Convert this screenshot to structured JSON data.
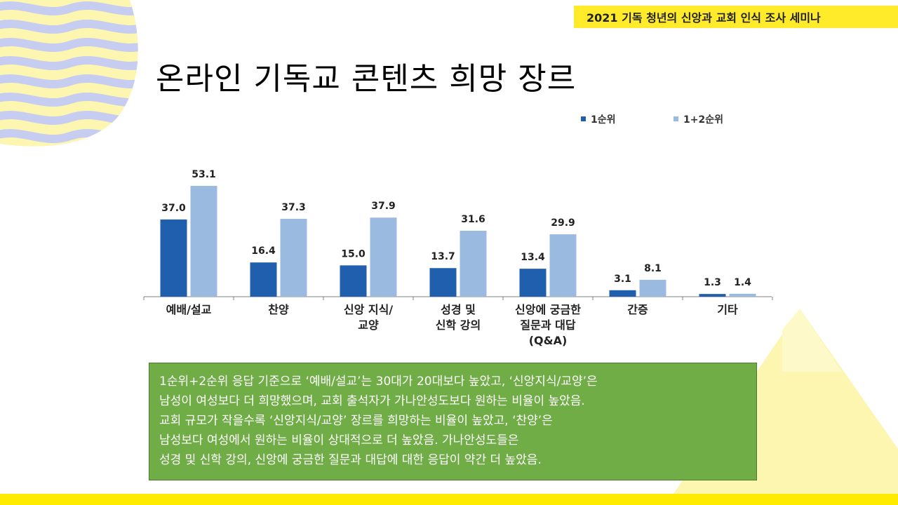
{
  "header": {
    "banner_text": "2021 기독 청년의 신앙과 교회 인식 조사 세미나"
  },
  "slide": {
    "title": "온라인 기독교 콘텐츠 희망 장르"
  },
  "colors": {
    "series1": "#1f5fad",
    "series2": "#9bbae0",
    "banner": "#ffeb2a",
    "summary_bg": "#70ad47",
    "deco_blue": "#c7cdf0",
    "deco_yellow": "#fdf6b0"
  },
  "chart_data": {
    "type": "bar",
    "title": "",
    "categories": [
      [
        "예배/설교"
      ],
      [
        "찬양"
      ],
      [
        "신앙 지식/",
        "교양"
      ],
      [
        "성경 및",
        "신학 강의"
      ],
      [
        "신앙에 궁금한",
        "질문과 대답",
        "(Q&A)"
      ],
      [
        "간증"
      ],
      [
        "기타"
      ]
    ],
    "series": [
      {
        "name": "1순위",
        "values": [
          37.0,
          16.4,
          15.0,
          13.7,
          13.4,
          3.1,
          1.3
        ]
      },
      {
        "name": "1+2순위",
        "values": [
          53.1,
          37.3,
          37.9,
          31.6,
          29.9,
          8.1,
          1.4
        ]
      }
    ],
    "ylim": [
      0,
      53.1
    ],
    "legend_position": "top-right",
    "grid": false
  },
  "summary": {
    "lines": [
      "1순위+2순위 응답 기준으로 ‘예배/설교’는 30대가 20대보다 높았고, ‘신앙지식/교양’은",
      "남성이 여성보다 더 희망했으며, 교회 출석자가 가나안성도보다 원하는 비율이 높았음.",
      "교회 규모가 작을수록 ‘신앙지식/교양’ 장르를 희망하는 비율이 높았고, ‘찬양’은",
      "남성보다 여성에서 원하는 비율이 상대적으로 더 높았음. 가나안성도들은",
      "성경 및 신학 강의, 신앙에 궁금한 질문과 대답에 대한 응답이 약간 더 높았음."
    ]
  }
}
